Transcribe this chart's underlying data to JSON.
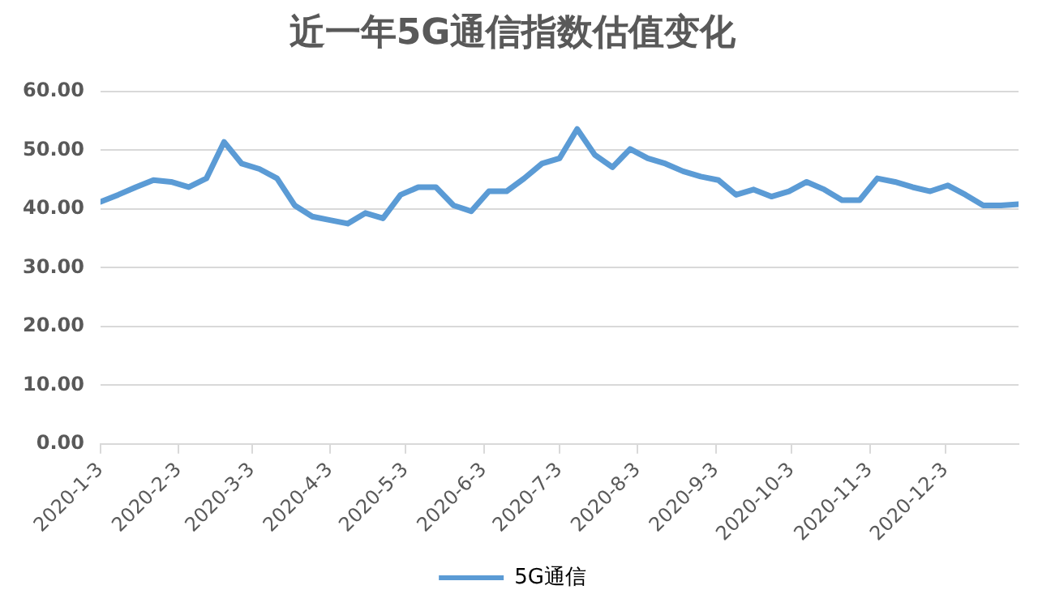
{
  "chart_data": {
    "type": "line",
    "title": "近一年5G通信指数估值变化",
    "x": [
      "2020-01-03",
      "2020-01-10",
      "2020-01-17",
      "2020-01-24",
      "2020-01-31",
      "2020-02-07",
      "2020-02-14",
      "2020-02-21",
      "2020-02-28",
      "2020-03-06",
      "2020-03-13",
      "2020-03-20",
      "2020-03-27",
      "2020-04-03",
      "2020-04-10",
      "2020-04-17",
      "2020-04-24",
      "2020-05-01",
      "2020-05-08",
      "2020-05-15",
      "2020-05-22",
      "2020-05-29",
      "2020-06-05",
      "2020-06-12",
      "2020-06-19",
      "2020-06-26",
      "2020-07-03",
      "2020-07-10",
      "2020-07-17",
      "2020-07-24",
      "2020-07-31",
      "2020-08-07",
      "2020-08-14",
      "2020-08-21",
      "2020-08-28",
      "2020-09-04",
      "2020-09-11",
      "2020-09-18",
      "2020-09-25",
      "2020-10-02",
      "2020-10-09",
      "2020-10-16",
      "2020-10-23",
      "2020-10-30",
      "2020-11-06",
      "2020-11-13",
      "2020-11-20",
      "2020-11-27",
      "2020-12-04",
      "2020-12-11",
      "2020-12-18",
      "2020-12-25",
      "2021-01-01"
    ],
    "series": [
      {
        "name": "5G通信",
        "color": "#5b9bd5",
        "values": [
          41.2,
          42.4,
          43.7,
          44.9,
          44.6,
          43.7,
          45.2,
          51.4,
          47.7,
          46.8,
          45.2,
          40.6,
          38.7,
          38.1,
          37.5,
          39.3,
          38.4,
          42.4,
          43.7,
          43.7,
          40.6,
          39.6,
          43.0,
          43.0,
          45.2,
          47.7,
          48.6,
          53.6,
          49.2,
          47.1,
          50.2,
          48.6,
          47.7,
          46.4,
          45.5,
          44.9,
          42.4,
          43.3,
          42.1,
          43.0,
          44.6,
          43.3,
          41.5,
          41.5,
          45.2,
          44.6,
          43.7,
          43.0,
          44.0,
          42.4,
          40.6,
          40.6,
          40.8
        ]
      }
    ],
    "xlim": [
      "2020-01-03",
      "2021-01-01"
    ],
    "xticks": [
      {
        "value": "2020-01-03",
        "label": "2020-1-3"
      },
      {
        "value": "2020-02-03",
        "label": "2020-2-3"
      },
      {
        "value": "2020-03-03",
        "label": "2020-3-3"
      },
      {
        "value": "2020-04-03",
        "label": "2020-4-3"
      },
      {
        "value": "2020-05-03",
        "label": "2020-5-3"
      },
      {
        "value": "2020-06-03",
        "label": "2020-6-3"
      },
      {
        "value": "2020-07-03",
        "label": "2020-7-3"
      },
      {
        "value": "2020-08-03",
        "label": "2020-8-3"
      },
      {
        "value": "2020-09-03",
        "label": "2020-9-3"
      },
      {
        "value": "2020-10-03",
        "label": "2020-10-3"
      },
      {
        "value": "2020-11-03",
        "label": "2020-11-3"
      },
      {
        "value": "2020-12-03",
        "label": "2020-12-3"
      }
    ],
    "ylim": [
      0,
      60
    ],
    "yticks": [
      {
        "value": 0,
        "label": "0.00"
      },
      {
        "value": 10,
        "label": "10.00"
      },
      {
        "value": 20,
        "label": "20.00"
      },
      {
        "value": 30,
        "label": "30.00"
      },
      {
        "value": 40,
        "label": "40.00"
      },
      {
        "value": 50,
        "label": "50.00"
      },
      {
        "value": 60,
        "label": "60.00"
      }
    ],
    "grid": "y",
    "legend": "bottom",
    "marker": "none",
    "line_style": "solid"
  }
}
